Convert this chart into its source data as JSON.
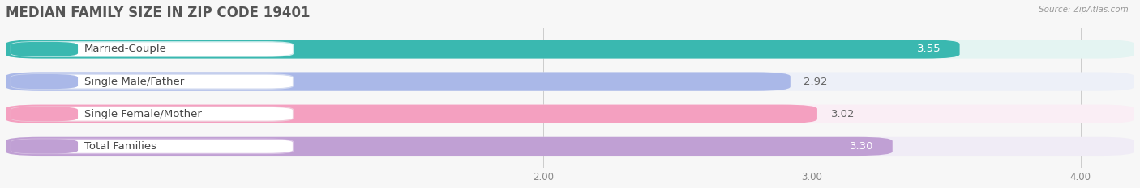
{
  "title": "MEDIAN FAMILY SIZE IN ZIP CODE 19401",
  "source": "Source: ZipAtlas.com",
  "categories": [
    "Married-Couple",
    "Single Male/Father",
    "Single Female/Mother",
    "Total Families"
  ],
  "values": [
    3.55,
    2.92,
    3.02,
    3.3
  ],
  "bar_colors": [
    "#3ab8b0",
    "#aab8e8",
    "#f4a0c0",
    "#c0a0d4"
  ],
  "bar_background_colors": [
    "#e4f4f2",
    "#edf0f8",
    "#faeef5",
    "#f0ecf6"
  ],
  "label_bg_border_colors": [
    "#ccecec",
    "#d0d8f0",
    "#f0c8d8",
    "#d8c0e4"
  ],
  "value_inside": [
    true,
    false,
    false,
    true
  ],
  "xlim_data": [
    0.0,
    4.2
  ],
  "xaxis_min": 0.0,
  "xaxis_max": 4.2,
  "xticks": [
    2.0,
    3.0,
    4.0
  ],
  "xtick_labels": [
    "2.00",
    "3.00",
    "4.00"
  ],
  "label_fontsize": 9.5,
  "value_fontsize": 9.5,
  "title_fontsize": 12,
  "bar_height": 0.58,
  "bg_color": "#f7f7f7",
  "white": "#ffffff",
  "value_inside_color": "#ffffff",
  "value_outside_color": "#666666"
}
